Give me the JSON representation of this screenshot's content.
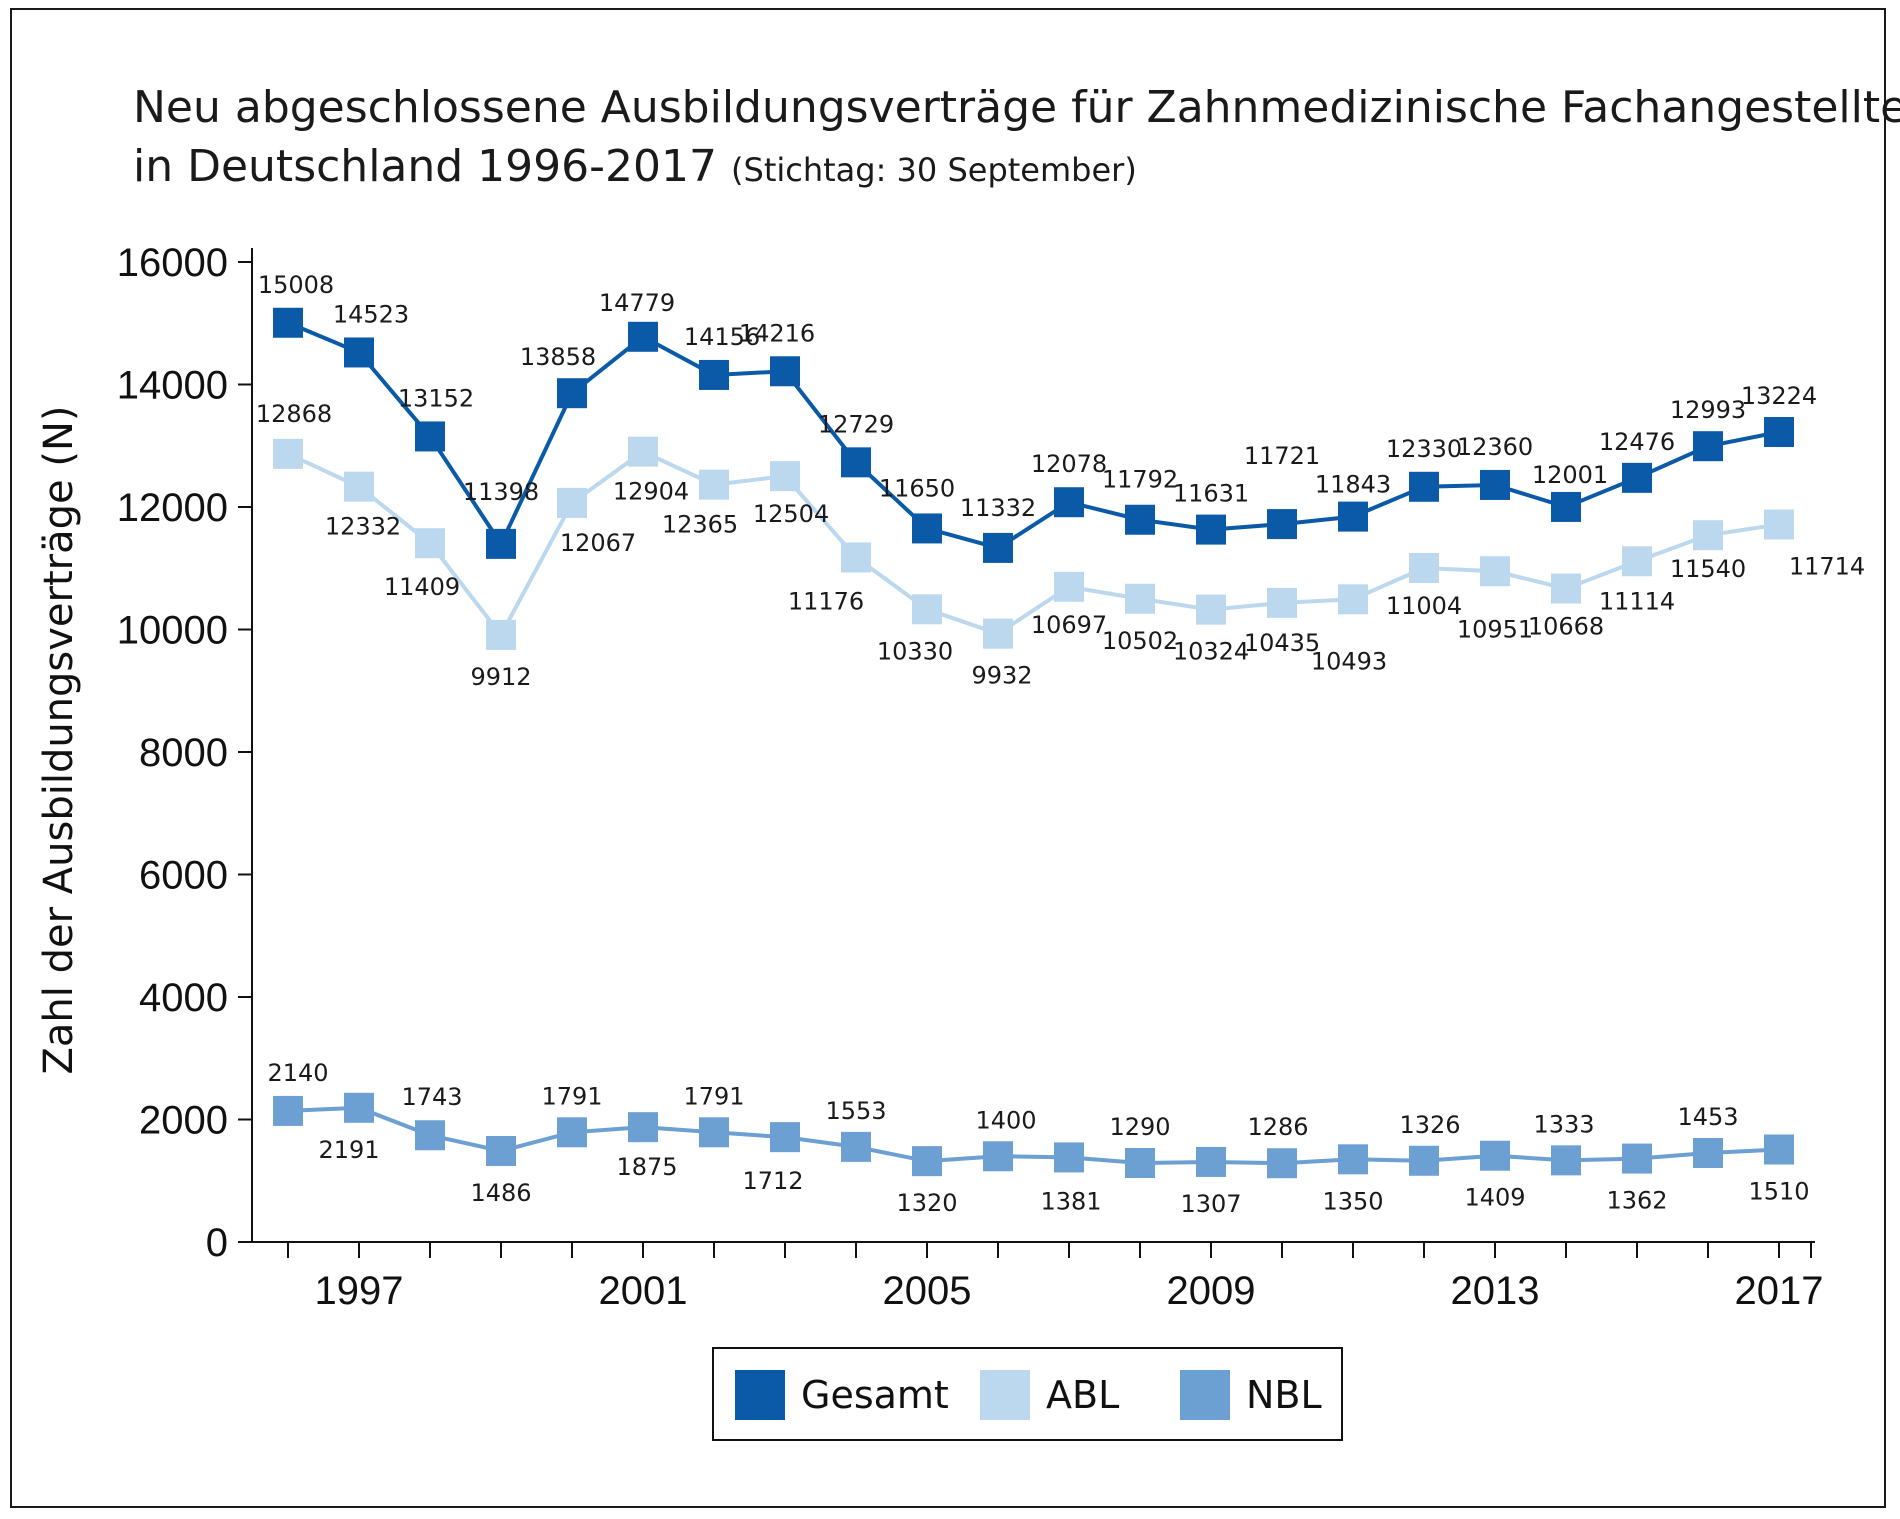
{
  "chart_data": {
    "type": "line",
    "title_line1": "Neu abgeschlossene Ausbildungsverträge für Zahnmedizinische Fachangestellte",
    "title_line2": "in Deutschland 1996-2017",
    "subtitle": "(Stichtag: 30 September)",
    "ylabel": "Zahl der Ausbildungsverträge (N)",
    "ylim": [
      0,
      16000
    ],
    "yticks": [
      0,
      2000,
      4000,
      6000,
      8000,
      10000,
      12000,
      14000,
      16000
    ],
    "x": [
      1996,
      1997,
      1998,
      1999,
      2000,
      2001,
      2002,
      2003,
      2004,
      2005,
      2006,
      2007,
      2008,
      2009,
      2010,
      2011,
      2012,
      2013,
      2014,
      2015,
      2016,
      2017
    ],
    "xtick_labels": [
      "1997",
      "2001",
      "2005",
      "2009",
      "2013",
      "2017"
    ],
    "xtick_values": [
      1997,
      2001,
      2005,
      2009,
      2013,
      2017
    ],
    "series": [
      {
        "name": "Gesamt",
        "color": "#0a5aa8",
        "marker": "square",
        "values": [
          15008,
          14523,
          13152,
          11398,
          13858,
          14779,
          14156,
          14216,
          12729,
          11650,
          11332,
          12078,
          11792,
          11631,
          11721,
          11843,
          12330,
          12360,
          12001,
          12476,
          12993,
          13224
        ]
      },
      {
        "name": "ABL",
        "color": "#bcd8ee",
        "marker": "square",
        "values": [
          12868,
          12332,
          11409,
          9912,
          12067,
          12904,
          12365,
          12504,
          11176,
          10330,
          9932,
          10697,
          10502,
          10324,
          10435,
          10493,
          11004,
          10951,
          10668,
          11114,
          11540,
          11714
        ]
      },
      {
        "name": "NBL",
        "color": "#6c9fd2",
        "marker": "square",
        "values": [
          2140,
          2191,
          1743,
          1486,
          1791,
          1875,
          1791,
          1712,
          1553,
          1320,
          1400,
          1381,
          1290,
          1307,
          1286,
          1350,
          1326,
          1409,
          1333,
          1362,
          1453,
          1510
        ]
      }
    ],
    "legend_position": "bottom-center",
    "grid": false
  }
}
